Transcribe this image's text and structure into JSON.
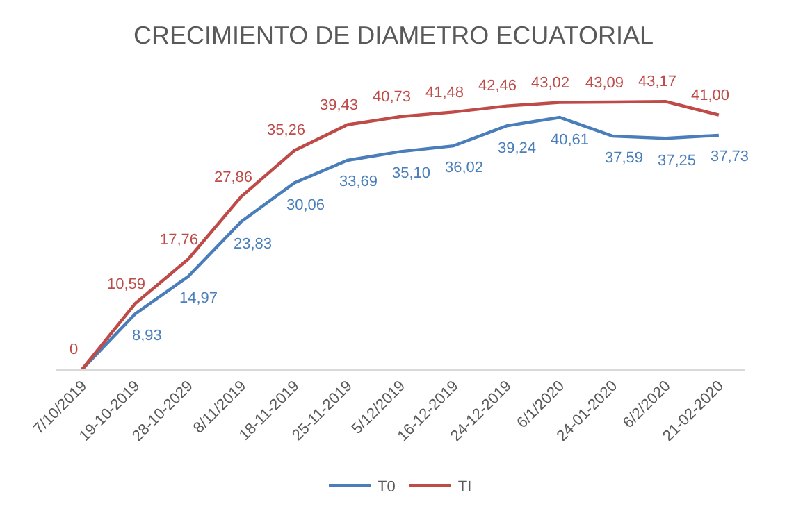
{
  "chart_data": {
    "type": "line",
    "title": "CRECIMIENTO DE DIAMETRO ECUATORIAL",
    "categories": [
      "7/10/2019",
      "19-10-2019",
      "28-10-2029",
      "8/11/2019",
      "18-11-2019",
      "25-11-2019",
      "5/12/2019",
      "16-12-2019",
      "24-12-2019",
      "6/1/2020",
      "24-01-2020",
      "6/2/2020",
      "21-02-2020"
    ],
    "series": [
      {
        "name": "T0",
        "color": "#4a7ebb",
        "values": [
          0,
          8.93,
          14.97,
          23.83,
          30.06,
          33.69,
          35.1,
          36.02,
          39.24,
          40.61,
          37.59,
          37.25,
          37.73
        ],
        "value_labels": [
          null,
          "8,93",
          "14,97",
          "23,83",
          "30,06",
          "33,69",
          "35,10",
          "36,02",
          "39,24",
          "40,61",
          "37,59",
          "37,25",
          "37,73"
        ]
      },
      {
        "name": "TI",
        "color": "#be4b48",
        "values": [
          0,
          10.59,
          17.76,
          27.86,
          35.26,
          39.43,
          40.73,
          41.48,
          42.46,
          43.02,
          43.09,
          43.17,
          41.0
        ],
        "value_labels": [
          "0",
          "10,59",
          "17,76",
          "27,86",
          "35,26",
          "39,43",
          "40,73",
          "41,48",
          "42,46",
          "43,02",
          "43,09",
          "43,17",
          "41,00"
        ]
      }
    ],
    "legend": "bottom",
    "marker": "none",
    "line_style": "solid",
    "tick_labels": "x"
  }
}
